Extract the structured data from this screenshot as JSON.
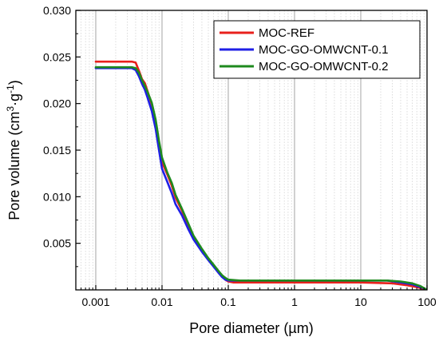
{
  "chart_data": {
    "type": "line",
    "xlabel": "Pore diameter (µm)",
    "ylabel_parts": [
      "Pore volume (cm",
      "3",
      "·g",
      "-1",
      ")"
    ],
    "x_scale": "log",
    "xlim": [
      0.0005,
      100
    ],
    "ylim": [
      0,
      0.03
    ],
    "x_ticks": [
      {
        "value": 0.001,
        "label": "0.001"
      },
      {
        "value": 0.01,
        "label": "0.01"
      },
      {
        "value": 0.1,
        "label": "0.1"
      },
      {
        "value": 1,
        "label": "1"
      },
      {
        "value": 10,
        "label": "10"
      },
      {
        "value": 100,
        "label": "100"
      }
    ],
    "y_ticks": [
      {
        "value": 0.005,
        "label": "0.005"
      },
      {
        "value": 0.01,
        "label": "0.010"
      },
      {
        "value": 0.015,
        "label": "0.015"
      },
      {
        "value": 0.02,
        "label": "0.020"
      },
      {
        "value": 0.025,
        "label": "0.025"
      },
      {
        "value": 0.03,
        "label": "0.030"
      }
    ],
    "grid": "major and minor x gridlines",
    "legend_position": "top-right",
    "series": [
      {
        "name": "MOC-REF",
        "color": "#e8201c",
        "points": [
          [
            0.001,
            0.0245
          ],
          [
            0.0035,
            0.0245
          ],
          [
            0.004,
            0.0244
          ],
          [
            0.0045,
            0.0235
          ],
          [
            0.005,
            0.0226
          ],
          [
            0.0055,
            0.0222
          ],
          [
            0.006,
            0.0214
          ],
          [
            0.007,
            0.0199
          ],
          [
            0.008,
            0.0178
          ],
          [
            0.009,
            0.0155
          ],
          [
            0.01,
            0.0137
          ],
          [
            0.012,
            0.0124
          ],
          [
            0.014,
            0.0112
          ],
          [
            0.016,
            0.0099
          ],
          [
            0.02,
            0.0085
          ],
          [
            0.025,
            0.0068
          ],
          [
            0.03,
            0.0055
          ],
          [
            0.04,
            0.0042
          ],
          [
            0.05,
            0.0033
          ],
          [
            0.06,
            0.0026
          ],
          [
            0.07,
            0.002
          ],
          [
            0.08,
            0.0015
          ],
          [
            0.09,
            0.0011
          ],
          [
            0.1,
            0.0009
          ],
          [
            0.12,
            0.0008
          ],
          [
            0.2,
            0.0008
          ],
          [
            1,
            0.0008
          ],
          [
            10,
            0.0008
          ],
          [
            30,
            0.0007
          ],
          [
            50,
            0.0005
          ],
          [
            70,
            0.0003
          ],
          [
            90,
            0.0001
          ]
        ]
      },
      {
        "name": "MOC-GO-OMWCNT-0.1",
        "color": "#1f1fe6",
        "points": [
          [
            0.001,
            0.0238
          ],
          [
            0.0035,
            0.0238
          ],
          [
            0.004,
            0.0236
          ],
          [
            0.0045,
            0.0229
          ],
          [
            0.005,
            0.0221
          ],
          [
            0.0055,
            0.0215
          ],
          [
            0.006,
            0.0207
          ],
          [
            0.007,
            0.0192
          ],
          [
            0.008,
            0.0173
          ],
          [
            0.009,
            0.015
          ],
          [
            0.01,
            0.013
          ],
          [
            0.012,
            0.0116
          ],
          [
            0.014,
            0.0104
          ],
          [
            0.016,
            0.0092
          ],
          [
            0.02,
            0.008
          ],
          [
            0.025,
            0.0065
          ],
          [
            0.03,
            0.0054
          ],
          [
            0.04,
            0.0041
          ],
          [
            0.05,
            0.0032
          ],
          [
            0.06,
            0.0025
          ],
          [
            0.07,
            0.0019
          ],
          [
            0.08,
            0.0014
          ],
          [
            0.09,
            0.0011
          ],
          [
            0.1,
            0.001
          ],
          [
            0.15,
            0.001
          ],
          [
            1,
            0.001
          ],
          [
            10,
            0.001
          ],
          [
            25,
            0.001
          ],
          [
            40,
            0.0008
          ],
          [
            60,
            0.0006
          ],
          [
            80,
            0.0003
          ],
          [
            95,
            0.0001
          ]
        ]
      },
      {
        "name": "MOC-GO-OMWCNT-0.2",
        "color": "#1e8a1e",
        "points": [
          [
            0.001,
            0.0239
          ],
          [
            0.0035,
            0.0239
          ],
          [
            0.004,
            0.0238
          ],
          [
            0.0045,
            0.0233
          ],
          [
            0.005,
            0.0225
          ],
          [
            0.0055,
            0.0219
          ],
          [
            0.006,
            0.0213
          ],
          [
            0.007,
            0.0201
          ],
          [
            0.008,
            0.0183
          ],
          [
            0.009,
            0.016
          ],
          [
            0.01,
            0.0142
          ],
          [
            0.012,
            0.0126
          ],
          [
            0.014,
            0.0115
          ],
          [
            0.016,
            0.0102
          ],
          [
            0.02,
            0.0087
          ],
          [
            0.025,
            0.0071
          ],
          [
            0.03,
            0.0058
          ],
          [
            0.04,
            0.0044
          ],
          [
            0.05,
            0.0034
          ],
          [
            0.06,
            0.0027
          ],
          [
            0.07,
            0.0021
          ],
          [
            0.08,
            0.0016
          ],
          [
            0.09,
            0.0013
          ],
          [
            0.1,
            0.0011
          ],
          [
            0.15,
            0.001
          ],
          [
            1,
            0.001
          ],
          [
            10,
            0.001
          ],
          [
            25,
            0.001
          ],
          [
            40,
            0.0009
          ],
          [
            60,
            0.0007
          ],
          [
            80,
            0.0004
          ],
          [
            95,
            0.0001
          ]
        ]
      }
    ]
  }
}
